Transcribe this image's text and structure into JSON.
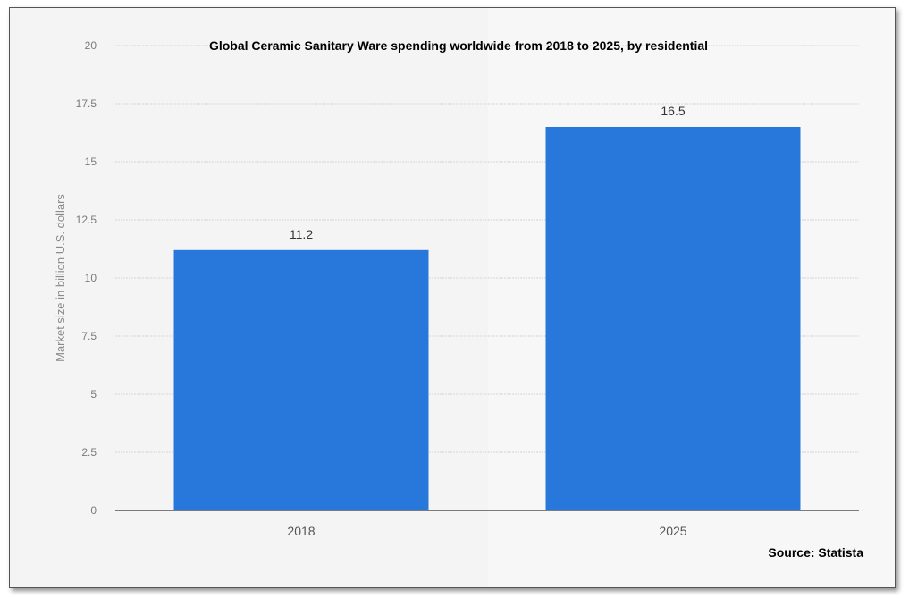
{
  "chart_data": {
    "type": "bar",
    "title": "Global Ceramic Sanitary Ware spending worldwide from 2018 to 2025, by residential",
    "ylabel": "Market size in billion U.S. dollars",
    "xlabel": "",
    "categories": [
      "2018",
      "2025"
    ],
    "values": [
      11.2,
      16.5
    ],
    "data_labels": [
      "11.2",
      "16.5"
    ],
    "ylim": [
      0,
      20
    ],
    "yticks": [
      "0",
      "2.5",
      "5",
      "7.5",
      "10",
      "12.5",
      "15",
      "17.5",
      "20"
    ],
    "ytick_values": [
      0,
      2.5,
      5,
      7.5,
      10,
      12.5,
      15,
      17.5,
      20
    ],
    "grid": true,
    "bar_color": "#2878dc",
    "source": "Source: Statista"
  }
}
